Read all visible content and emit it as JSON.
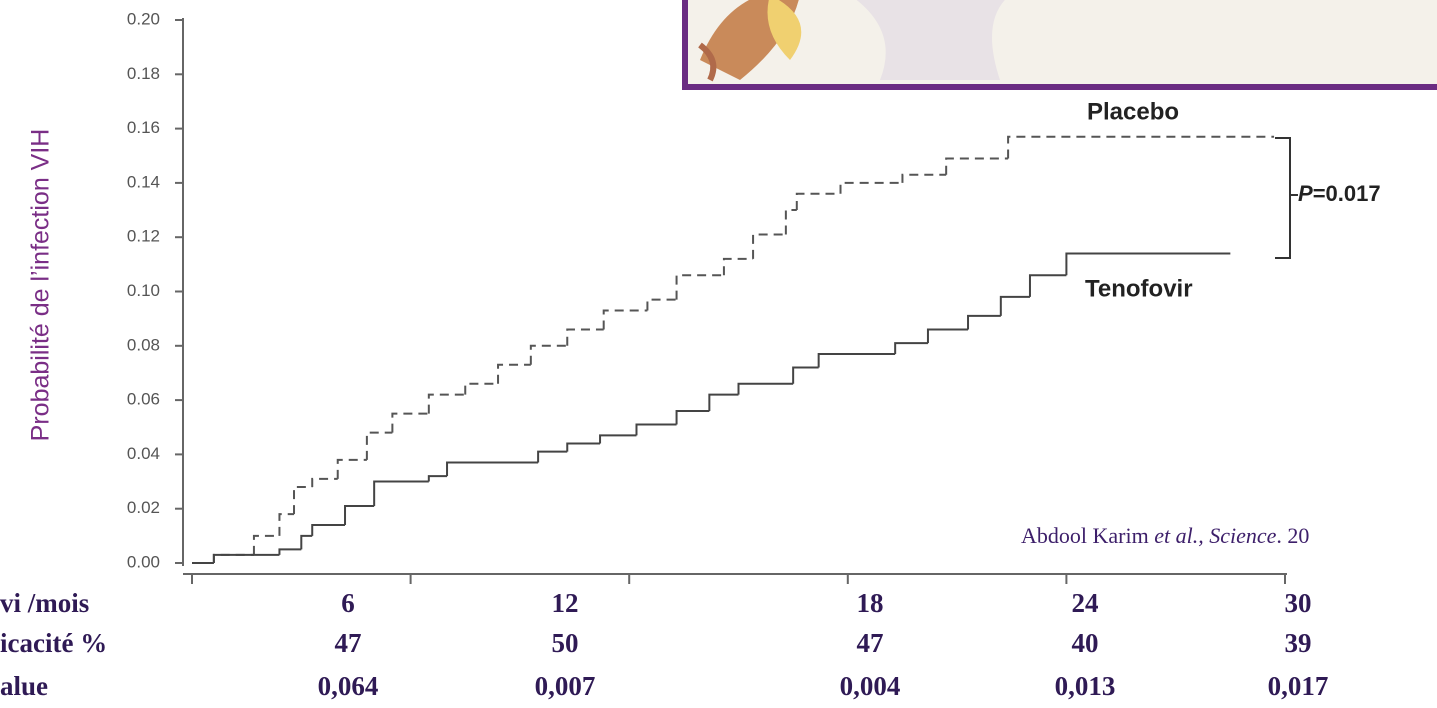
{
  "chart_data": {
    "type": "step",
    "y_label": "Probabilité de l’infection VIH",
    "xlim": [
      0,
      30
    ],
    "xticks": [
      0,
      6,
      12,
      18,
      24,
      30
    ],
    "ylim": [
      0,
      0.2
    ],
    "yticks": [
      {
        "value": 0,
        "label": "0.00"
      },
      {
        "value": 0.02,
        "label": "0.02"
      },
      {
        "value": 0.04,
        "label": "0.04"
      },
      {
        "value": 0.06,
        "label": "0.06"
      },
      {
        "value": 0.08,
        "label": "0.08"
      },
      {
        "value": 0.1,
        "label": "0.10"
      },
      {
        "value": 0.12,
        "label": "0.12"
      },
      {
        "value": 0.14,
        "label": "0.14"
      },
      {
        "value": 0.16,
        "label": "0.16"
      },
      {
        "value": 0.18,
        "label": "0.18"
      },
      {
        "value": 0.2,
        "label": "0.20"
      }
    ],
    "series": [
      {
        "name": "Placebo",
        "color": "#555555",
        "dash": true,
        "x": [
          0,
          0.6,
          1.7,
          2.4,
          2.8,
          3.3,
          4.0,
          4.8,
          5.5,
          6.5,
          7.5,
          8.4,
          9.3,
          10.3,
          11.3,
          12.5,
          13.3,
          14.6,
          15.4,
          16.3,
          16.6,
          17.8,
          19.5,
          20.7,
          22.4,
          29.7
        ],
        "values": [
          0,
          0.003,
          0.01,
          0.018,
          0.028,
          0.031,
          0.038,
          0.048,
          0.055,
          0.062,
          0.066,
          0.073,
          0.08,
          0.086,
          0.093,
          0.097,
          0.106,
          0.112,
          0.121,
          0.13,
          0.136,
          0.14,
          0.143,
          0.149,
          0.157,
          0.157
        ]
      },
      {
        "name": "Tenofovir",
        "color": "#444444",
        "dash": false,
        "x": [
          0,
          0.6,
          2.4,
          3.0,
          3.3,
          4.2,
          5.0,
          6.5,
          7.0,
          9.5,
          10.3,
          11.2,
          12.2,
          13.3,
          14.2,
          15.0,
          16.5,
          17.2,
          19.3,
          20.2,
          21.3,
          22.2,
          23.0,
          24.0,
          28.5
        ],
        "values": [
          0,
          0.003,
          0.005,
          0.01,
          0.014,
          0.021,
          0.03,
          0.032,
          0.037,
          0.041,
          0.044,
          0.047,
          0.051,
          0.056,
          0.062,
          0.066,
          0.072,
          0.077,
          0.081,
          0.086,
          0.091,
          0.098,
          0.106,
          0.114,
          0.114
        ]
      }
    ],
    "annotation": {
      "p_symbol": "P",
      "p_value": "=0.017"
    },
    "citation": {
      "authors": "Abdool Karim ",
      "journal": "et al., Science",
      "year": ". 20"
    }
  },
  "table": {
    "rows": [
      [
        "vi /mois",
        "6",
        "12",
        "18",
        "24",
        "30"
      ],
      [
        "icacité %",
        "47",
        "50",
        "47",
        "40",
        "39"
      ],
      [
        "alue",
        "0,064",
        "0,007",
        "0,004",
        "0,013",
        "0,017"
      ]
    ]
  }
}
